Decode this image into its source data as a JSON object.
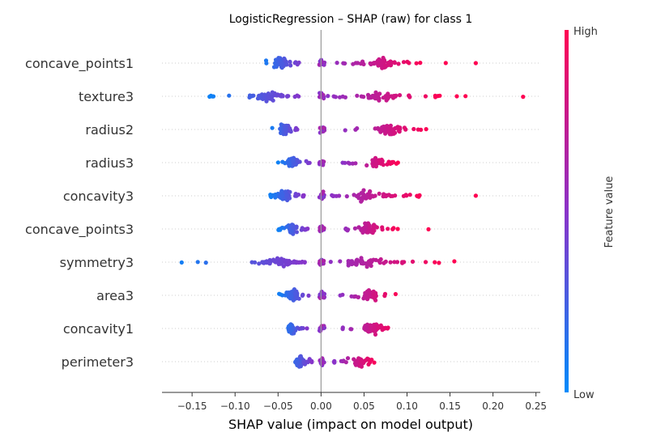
{
  "chart_data": {
    "type": "scatter",
    "title": "LogisticRegression – SHAP (raw) for class 1",
    "xlabel": "SHAP value (impact on model output)",
    "xlim": [
      -0.185,
      0.255
    ],
    "xticks": [
      -0.15,
      -0.1,
      -0.05,
      0.0,
      0.05,
      0.1,
      0.15,
      0.2,
      0.25
    ],
    "xtick_labels": [
      "−0.15",
      "−0.10",
      "−0.05",
      "0.00",
      "0.05",
      "0.10",
      "0.15",
      "0.20",
      "0.25"
    ],
    "grid": false,
    "colorbar": {
      "label": "Feature value",
      "high_label": "High",
      "low_label": "Low",
      "low_color": "#008bfb",
      "high_color": "#ff0052"
    },
    "features": [
      {
        "name": "concave_points1",
        "neg_range": [
          -0.07,
          -0.02
        ],
        "neg_center": -0.048,
        "pos_range": [
          0.005,
          0.12
        ],
        "pos_center": 0.07,
        "outliers": [
          0.145,
          0.18
        ]
      },
      {
        "name": "texture3",
        "neg_range": [
          -0.13,
          -0.02
        ],
        "neg_center": -0.06,
        "pos_range": [
          0.005,
          0.14
        ],
        "pos_center": 0.07,
        "outliers": [
          0.158,
          0.168,
          0.235
        ]
      },
      {
        "name": "radius2",
        "neg_range": [
          -0.06,
          -0.025
        ],
        "neg_center": -0.043,
        "pos_range": [
          0.02,
          0.125
        ],
        "pos_center": 0.08,
        "outliers": []
      },
      {
        "name": "radius3",
        "neg_range": [
          -0.05,
          -0.01
        ],
        "neg_center": -0.033,
        "pos_range": [
          0.025,
          0.09
        ],
        "pos_center": 0.065,
        "outliers": []
      },
      {
        "name": "concavity3",
        "neg_range": [
          -0.06,
          -0.02
        ],
        "neg_center": -0.042,
        "pos_range": [
          0.01,
          0.12
        ],
        "pos_center": 0.055,
        "outliers": [
          0.18
        ]
      },
      {
        "name": "concave_points3",
        "neg_range": [
          -0.05,
          -0.015
        ],
        "neg_center": -0.033,
        "pos_range": [
          0.02,
          0.09
        ],
        "pos_center": 0.055,
        "outliers": [
          0.125
        ]
      },
      {
        "name": "symmetry3",
        "neg_range": [
          -0.17,
          -0.015
        ],
        "neg_center": -0.05,
        "pos_range": [
          0.005,
          0.14
        ],
        "pos_center": 0.05,
        "outliers": [
          0.155
        ]
      },
      {
        "name": "area3",
        "neg_range": [
          -0.05,
          -0.01
        ],
        "neg_center": -0.033,
        "pos_range": [
          0.02,
          0.09
        ],
        "pos_center": 0.058,
        "outliers": []
      },
      {
        "name": "concavity1",
        "neg_range": [
          -0.045,
          -0.015
        ],
        "neg_center": -0.035,
        "pos_range": [
          0.02,
          0.09
        ],
        "pos_center": 0.06,
        "outliers": []
      },
      {
        "name": "perimeter3",
        "neg_range": [
          -0.04,
          -0.01
        ],
        "neg_center": -0.025,
        "pos_range": [
          0.015,
          0.065
        ],
        "pos_center": 0.045,
        "outliers": []
      }
    ]
  }
}
